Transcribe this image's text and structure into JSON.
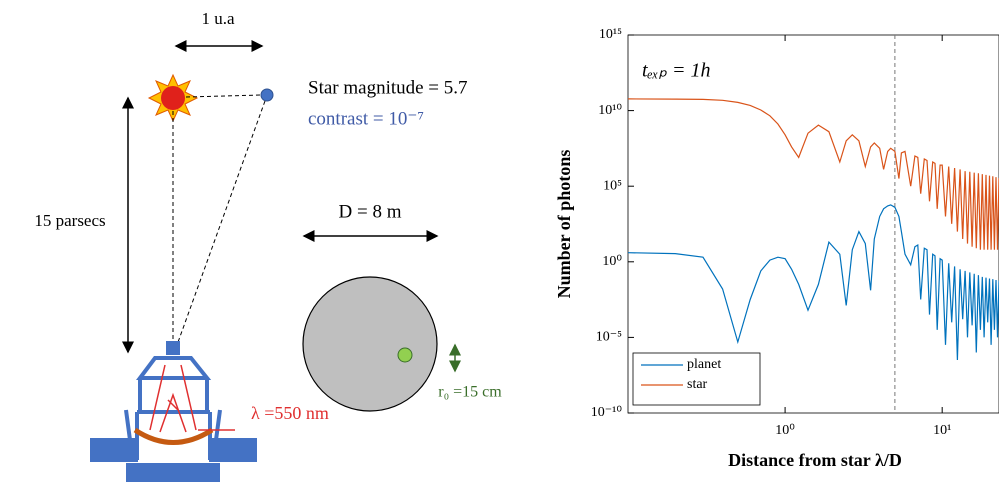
{
  "diagram": {
    "distance_label": "1 u.a",
    "star_magnitude": "Star magnitude = 5.7",
    "contrast": "contrast = 10⁻⁷",
    "parsecs": "15 parsecs",
    "diameter": "D = 8 m",
    "r0": "r₀ =15 cm",
    "wavelength": "λ =550 nm"
  },
  "chart_data": {
    "type": "line",
    "annotation": "tₑₓₚ = 1h",
    "x_label": "Distance from star λ/D",
    "y_label": "Number of photons",
    "log_x": true,
    "log_y": true,
    "legend": "lower left",
    "xlim": [
      0.1,
      23
    ],
    "ylim": [
      1e-10,
      1000000000000000.0
    ],
    "xticks": [
      {
        "value": 1,
        "label": "10⁰"
      },
      {
        "value": 10,
        "label": "10¹"
      }
    ],
    "yticks": [
      {
        "value": 1e-10,
        "label": "10⁻¹⁰"
      },
      {
        "value": 1e-05,
        "label": "10⁻⁵"
      },
      {
        "value": 1,
        "label": "10⁰"
      },
      {
        "value": 100000.0,
        "label": "10⁵"
      },
      {
        "value": 10000000000.0,
        "label": "10¹⁰"
      },
      {
        "value": 1000000000000000.0,
        "label": "10¹⁵"
      }
    ],
    "vline": 5,
    "x": [
      0.1,
      0.2,
      0.3,
      0.4,
      0.5,
      0.6,
      0.7,
      0.8,
      0.9,
      1.0,
      1.1,
      1.22,
      1.4,
      1.63,
      1.9,
      2.23,
      2.45,
      2.68,
      2.95,
      3.24,
      3.5,
      3.7,
      4.0,
      4.24,
      4.5,
      4.7,
      5.0,
      5.3,
      5.5,
      5.8,
      6.3,
      6.7,
      7.0,
      7.3,
      7.7,
      8.0,
      8.3,
      8.7,
      9.0,
      9.3,
      9.7,
      10,
      10.5,
      11,
      11.5,
      12,
      12.5,
      13,
      13.5,
      14,
      14.5,
      15,
      15.5,
      16,
      16.5,
      17,
      17.5,
      18,
      18.5,
      19,
      19.5,
      20,
      20.5,
      21,
      21.5,
      22,
      22.5,
      23
    ],
    "series": [
      {
        "name": "planet",
        "color": "#0072bd",
        "values": [
          4,
          3.5,
          2,
          0.016,
          5e-06,
          0.0032,
          0.25,
          1.3,
          2,
          1.6,
          0.32,
          0.032,
          0.00063,
          0.032,
          20,
          3.2,
          0.0013,
          6.3,
          100,
          16,
          0.013,
          32,
          1000,
          3200,
          5000,
          5800,
          4000,
          1000,
          100,
          3.2,
          0.63,
          10,
          13,
          0.0032,
          7.9,
          6.3,
          0.00032,
          3.2,
          2.5,
          3.2e-05,
          1.6,
          1.3,
          3.2e-06,
          0.79,
          0.0001,
          0.5,
          3.2e-07,
          0.32,
          0.00016,
          0.25,
          1e-05,
          0.2,
          6.3e-05,
          0.16,
          1e-06,
          0.13,
          3.2e-05,
          0.1,
          1e-05,
          0.089,
          0.0001,
          0.079,
          3.2e-06,
          0.071,
          3.2e-05,
          0.063,
          1e-05,
          0.056
        ]
      },
      {
        "name": "star",
        "color": "#d95319",
        "values": [
          59000000000.0,
          58000000000.0,
          55000000000.0,
          48000000000.0,
          35000000000.0,
          22000000000.0,
          11000000000.0,
          4500000000.0,
          1300000000.0,
          250000000.0,
          40000000.0,
          8000000.0,
          320000000.0,
          1100000000.0,
          400000000.0,
          4000000.0,
          100000000.0,
          250000000.0,
          100000000.0,
          2000000.0,
          40000000.0,
          72000000.0,
          32000000.0,
          1300000.0,
          20000000.0,
          32000000.0,
          20000000.0,
          320000.0,
          16000000.0,
          20000000.0,
          100000.0,
          10000000.0,
          8000000.0,
          32000.0,
          6300000.0,
          5000000.0,
          10000.0,
          4000000.0,
          3200000.0,
          3200.0,
          2500000.0,
          2500000.0,
          1000.0,
          2000000.0,
          320,
          1600000.0,
          100,
          1300000.0,
          32,
          1000000.0,
          16,
          890000.0,
          10,
          790000.0,
          7.9,
          710000.0,
          6.3,
          630000.0,
          6.3,
          560000.0,
          6.3,
          500000.0,
          6.3,
          450000.0,
          6.3,
          400000.0,
          6.3,
          350000.0
        ]
      }
    ]
  }
}
